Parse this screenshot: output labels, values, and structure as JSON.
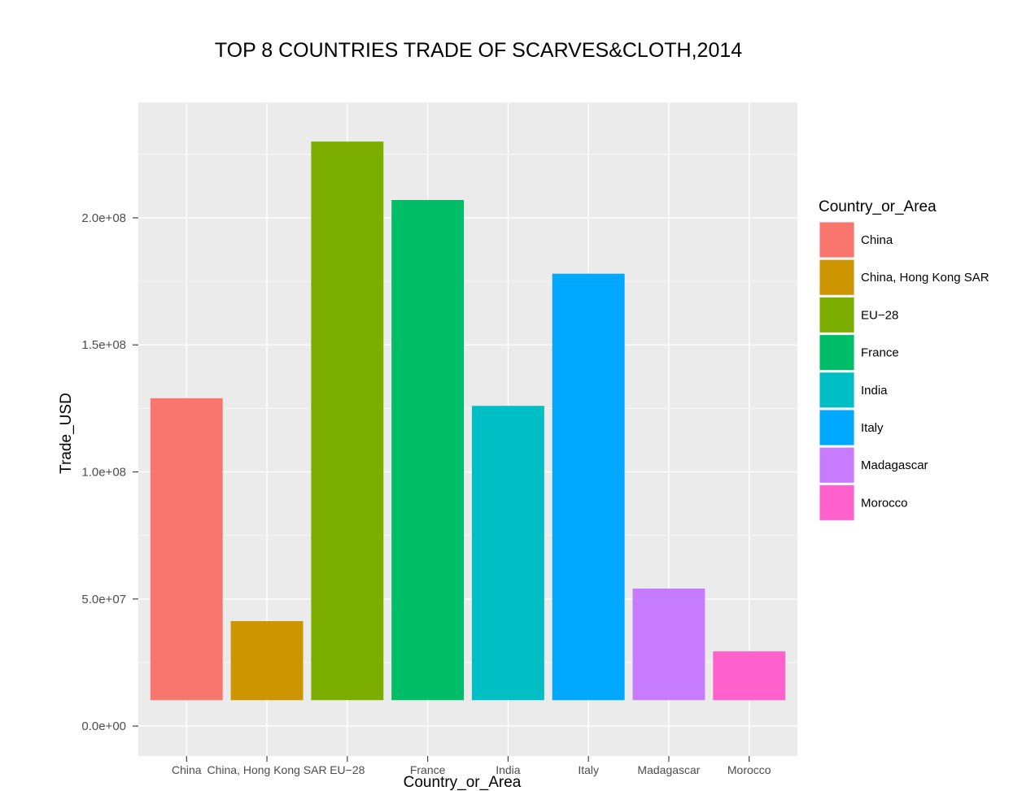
{
  "chart_data": {
    "type": "bar",
    "title": "TOP 8 COUNTRIES TRADE OF SCARVES&CLOTH,2014",
    "xlabel": "Country_or_Area",
    "ylabel": "Trade_USD",
    "categories": [
      "China",
      "China, Hong Kong SAR",
      "EU−28",
      "France",
      "India",
      "Italy",
      "Madagascar",
      "Morocco"
    ],
    "values": [
      129000000,
      41300000,
      230000000,
      207000000,
      126000000,
      178000000,
      54100000,
      29400000
    ],
    "bar_base": 10200000,
    "colors": [
      "#F8766D",
      "#CD9600",
      "#7CAE00",
      "#00BE67",
      "#00BFC4",
      "#00A9FF",
      "#C77CFF",
      "#FF61CC"
    ],
    "ylim": [
      -11800000,
      245400000
    ],
    "y_ticks": [
      0,
      50000000,
      100000000,
      150000000,
      200000000
    ],
    "y_tick_labels": [
      "0.0e+00",
      "5.0e+07",
      "1.0e+08",
      "1.5e+08",
      "2.0e+08"
    ],
    "grid": true,
    "legend": {
      "title": "Country_or_Area",
      "position": "right",
      "entries": [
        "China",
        "China, Hong Kong SAR",
        "EU−28",
        "France",
        "India",
        "Italy",
        "Madagascar",
        "Morocco"
      ]
    }
  }
}
